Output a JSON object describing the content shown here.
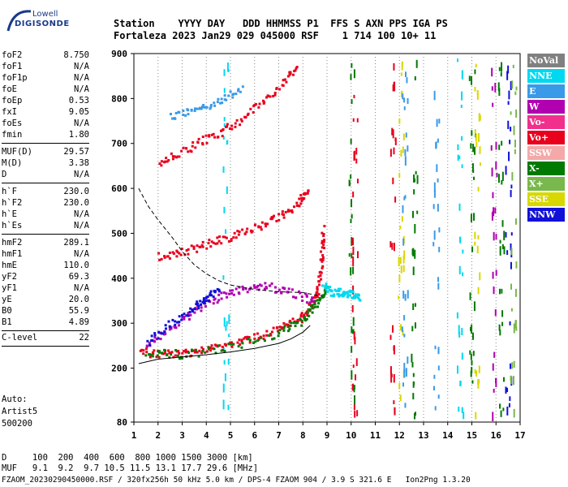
{
  "logo": {
    "line1": "Lowell",
    "line2": "DIGISONDE"
  },
  "header": {
    "row1": "Station    YYYY DAY   DDD HHMMSS P1  FFS S AXN PPS IGA PS",
    "row2": "Fortaleza 2023 Jan29 029 045000 RSF    1 714 100 10+ 11"
  },
  "params": {
    "group1": [
      {
        "k": "foF2",
        "v": "8.750"
      },
      {
        "k": "foF1",
        "v": "N/A"
      },
      {
        "k": "foF1p",
        "v": "N/A"
      },
      {
        "k": "foE",
        "v": "N/A"
      },
      {
        "k": "foEp",
        "v": "0.53"
      },
      {
        "k": "fxI",
        "v": "9.05"
      },
      {
        "k": "foEs",
        "v": "N/A"
      },
      {
        "k": "fmin",
        "v": "1.80"
      }
    ],
    "group2": [
      {
        "k": "MUF(D)",
        "v": "29.57"
      },
      {
        "k": "M(D)",
        "v": "3.38"
      },
      {
        "k": "D",
        "v": "N/A"
      }
    ],
    "group3": [
      {
        "k": "h`F",
        "v": "230.0"
      },
      {
        "k": "h`F2",
        "v": "230.0"
      },
      {
        "k": "h`E",
        "v": "N/A"
      },
      {
        "k": "h`Es",
        "v": "N/A"
      }
    ],
    "group4": [
      {
        "k": "hmF2",
        "v": "289.1"
      },
      {
        "k": "hmF1",
        "v": "N/A"
      },
      {
        "k": "hmE",
        "v": "110.0"
      },
      {
        "k": "yF2",
        "v": "69.3"
      },
      {
        "k": "yF1",
        "v": "N/A"
      },
      {
        "k": "yE",
        "v": "20.0"
      },
      {
        "k": "B0",
        "v": "55.9"
      },
      {
        "k": "B1",
        "v": "4.89"
      }
    ],
    "clevel": {
      "k": "C-level",
      "v": "22"
    }
  },
  "auto": {
    "l1": "Auto:",
    "l2": "Artist5",
    "l3": "500200"
  },
  "legend": [
    {
      "label": "NoVal",
      "color": "#808080"
    },
    {
      "label": "NNE",
      "color": "#00d8f0"
    },
    {
      "label": "E",
      "color": "#3a9ae8"
    },
    {
      "label": "W",
      "color": "#b000b0"
    },
    {
      "label": "Vo-",
      "color": "#f0308c"
    },
    {
      "label": "Vo+",
      "color": "#e8001c"
    },
    {
      "label": "SSW",
      "color": "#f4a8a8"
    },
    {
      "label": "X-",
      "color": "#007a00"
    },
    {
      "label": "X+",
      "color": "#78b84c"
    },
    {
      "label": "SSE",
      "color": "#d8d800"
    },
    {
      "label": "NNW",
      "color": "#1010d8"
    }
  ],
  "footer": {
    "d_row": "D     100  200  400  600  800 1000 1500 3000 [km]",
    "muf_row": "MUF   9.1  9.2  9.7 10.5 11.5 13.1 17.7 29.6 [MHz]",
    "file_row": "FZAOM_20230290450000.RSF / 320fx256h 50 kHz 5.0 km / DPS-4 FZAOM 904 / 3.9 S 321.6 E   Ion2Png 1.3.20"
  },
  "chart_data": {
    "type": "scatter",
    "title": "",
    "xlabel": "",
    "ylabel": "",
    "xlim": [
      1,
      17
    ],
    "ylim": [
      80,
      900
    ],
    "xticks": [
      "1",
      "2",
      "3",
      "4",
      "5",
      "6",
      "7",
      "8",
      "9",
      "10",
      "11",
      "12",
      "13",
      "14",
      "15",
      "16",
      "17"
    ],
    "yticks": [
      "80",
      "200",
      "300",
      "400",
      "500",
      "600",
      "700",
      "800",
      "900"
    ],
    "grid": "dotted vertical lines at each MHz",
    "series": [
      {
        "color": "#e8001c",
        "points": [
          [
            1.2,
            240
          ],
          [
            2,
            232
          ],
          [
            3,
            236
          ],
          [
            4,
            244
          ],
          [
            5,
            256
          ],
          [
            6,
            270
          ],
          [
            7,
            288
          ],
          [
            7.8,
            310
          ],
          [
            8.3,
            340
          ],
          [
            8.6,
            380
          ],
          [
            8.75,
            440
          ],
          [
            8.8,
            520
          ]
        ]
      },
      {
        "color": "#007a00",
        "points": [
          [
            1.5,
            238
          ],
          [
            3,
            232
          ],
          [
            5,
            250
          ],
          [
            7,
            280
          ],
          [
            8,
            310
          ],
          [
            8.6,
            350
          ],
          [
            9.0,
            390
          ]
        ]
      },
      {
        "color": "#b000b0",
        "points": [
          [
            1.5,
            250
          ],
          [
            2.5,
            290
          ],
          [
            3.5,
            330
          ],
          [
            4.5,
            360
          ],
          [
            5.5,
            380
          ],
          [
            6.5,
            385
          ],
          [
            7.5,
            370
          ],
          [
            8.5,
            350
          ]
        ]
      },
      {
        "color": "#1010d8",
        "points": [
          [
            1.5,
            260
          ],
          [
            2.5,
            300
          ],
          [
            3.5,
            340
          ],
          [
            4,
            360
          ],
          [
            4.5,
            380
          ]
        ]
      },
      {
        "color": "#e8001c",
        "points": [
          [
            2,
            450
          ],
          [
            3,
            462
          ],
          [
            4,
            478
          ],
          [
            5,
            495
          ],
          [
            6,
            515
          ],
          [
            7,
            540
          ],
          [
            7.8,
            570
          ],
          [
            8.2,
            600
          ]
        ]
      },
      {
        "color": "#e8001c",
        "points": [
          [
            2,
            660
          ],
          [
            3,
            685
          ],
          [
            4,
            712
          ],
          [
            5,
            740
          ],
          [
            6,
            780
          ],
          [
            7,
            830
          ],
          [
            7.8,
            880
          ]
        ]
      },
      {
        "color": "#3a9ae8",
        "points": [
          [
            2.5,
            760
          ],
          [
            3.5,
            775
          ],
          [
            4.5,
            795
          ],
          [
            5.5,
            830
          ]
        ]
      },
      {
        "color": "#00d8f0",
        "points": [
          [
            8.8,
            390
          ],
          [
            9.2,
            370
          ],
          [
            9.6,
            372
          ],
          [
            10,
            365
          ],
          [
            10.3,
            360
          ]
        ]
      }
    ],
    "curves": [
      {
        "style": "solid",
        "color": "#000",
        "points": [
          [
            1.2,
            210
          ],
          [
            2,
            220
          ],
          [
            3,
            225
          ],
          [
            4,
            230
          ],
          [
            5,
            236
          ],
          [
            6,
            244
          ],
          [
            7,
            255
          ],
          [
            7.5,
            265
          ],
          [
            8,
            280
          ],
          [
            8.3,
            295
          ]
        ]
      },
      {
        "style": "dashed",
        "color": "#000",
        "points": [
          [
            1.2,
            600
          ],
          [
            1.6,
            560
          ],
          [
            2,
            530
          ],
          [
            2.6,
            490
          ],
          [
            3,
            460
          ],
          [
            3.5,
            430
          ],
          [
            4,
            410
          ],
          [
            4.5,
            395
          ],
          [
            5,
            385
          ],
          [
            6,
            375
          ],
          [
            7,
            370
          ],
          [
            8,
            368
          ],
          [
            8.8,
            360
          ]
        ]
      }
    ]
  }
}
